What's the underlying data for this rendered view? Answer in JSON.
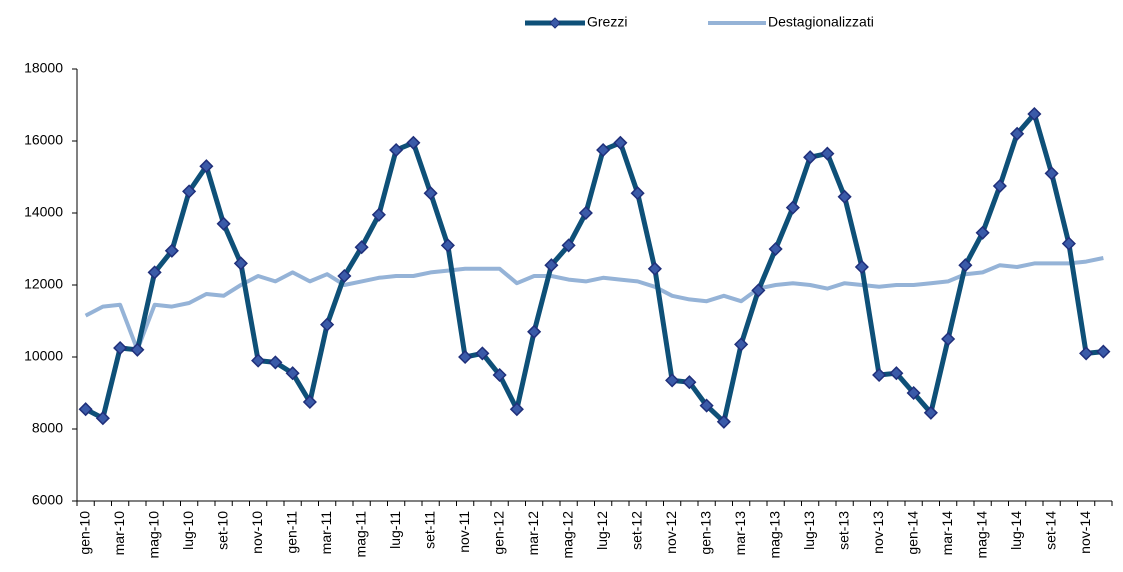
{
  "chart_data": {
    "type": "line",
    "categories": [
      "gen-10",
      null,
      "mar-10",
      null,
      "mag-10",
      null,
      "lug-10",
      null,
      "set-10",
      null,
      "nov-10",
      null,
      "gen-11",
      null,
      "mar-11",
      null,
      "mag-11",
      null,
      "lug-11",
      null,
      "set-11",
      null,
      "nov-11",
      null,
      "gen-12",
      null,
      "mar-12",
      null,
      "mag-12",
      null,
      "lug-12",
      null,
      "set-12",
      null,
      "nov-12",
      null,
      "gen-13",
      null,
      "mar-13",
      null,
      "mag-13",
      null,
      "lug-13",
      null,
      "set-13",
      null,
      "nov-13",
      null,
      "gen-14",
      null,
      "mar-14",
      null,
      "mag-14",
      null,
      "lug-14",
      null,
      "set-14",
      null,
      "nov-14",
      null
    ],
    "series": [
      {
        "name": "Grezzi",
        "color": "#0e5078",
        "marker_color": "#1f2f7a",
        "values": [
          8550,
          8300,
          10250,
          10200,
          12350,
          12950,
          14600,
          15300,
          13700,
          12600,
          9900,
          9850,
          9550,
          8750,
          10900,
          12250,
          13050,
          13950,
          15750,
          15950,
          14550,
          13100,
          10000,
          10100,
          9500,
          8550,
          10700,
          12550,
          13100,
          14000,
          15750,
          15950,
          14550,
          12450,
          9350,
          9300,
          8650,
          8200,
          10350,
          11850,
          13000,
          14150,
          15550,
          15650,
          14450,
          12500,
          9500,
          9550,
          9000,
          8450,
          10500,
          12550,
          13450,
          14750,
          16200,
          16750,
          15100,
          13150,
          10100,
          10150
        ]
      },
      {
        "name": "Destagionalizzati",
        "color": "#95b3d7",
        "values": [
          11150,
          11400,
          11450,
          10200,
          11450,
          11400,
          11500,
          11750,
          11700,
          12000,
          12250,
          12100,
          12350,
          12100,
          12300,
          12000,
          12100,
          12200,
          12250,
          12250,
          12350,
          12400,
          12450,
          12450,
          12450,
          12050,
          12250,
          12250,
          12150,
          12100,
          12200,
          12150,
          12100,
          11950,
          11700,
          11600,
          11550,
          11700,
          11550,
          11900,
          12000,
          12050,
          12000,
          11900,
          12050,
          12000,
          11950,
          12000,
          12000,
          12050,
          12100,
          12300,
          12350,
          12550,
          12500,
          12600,
          12600,
          12600,
          12650,
          12750
        ]
      }
    ],
    "ylim": [
      6000,
      18000
    ],
    "yticks": [
      6000,
      8000,
      10000,
      12000,
      14000,
      16000,
      18000
    ],
    "grid": false,
    "legend": "top"
  }
}
